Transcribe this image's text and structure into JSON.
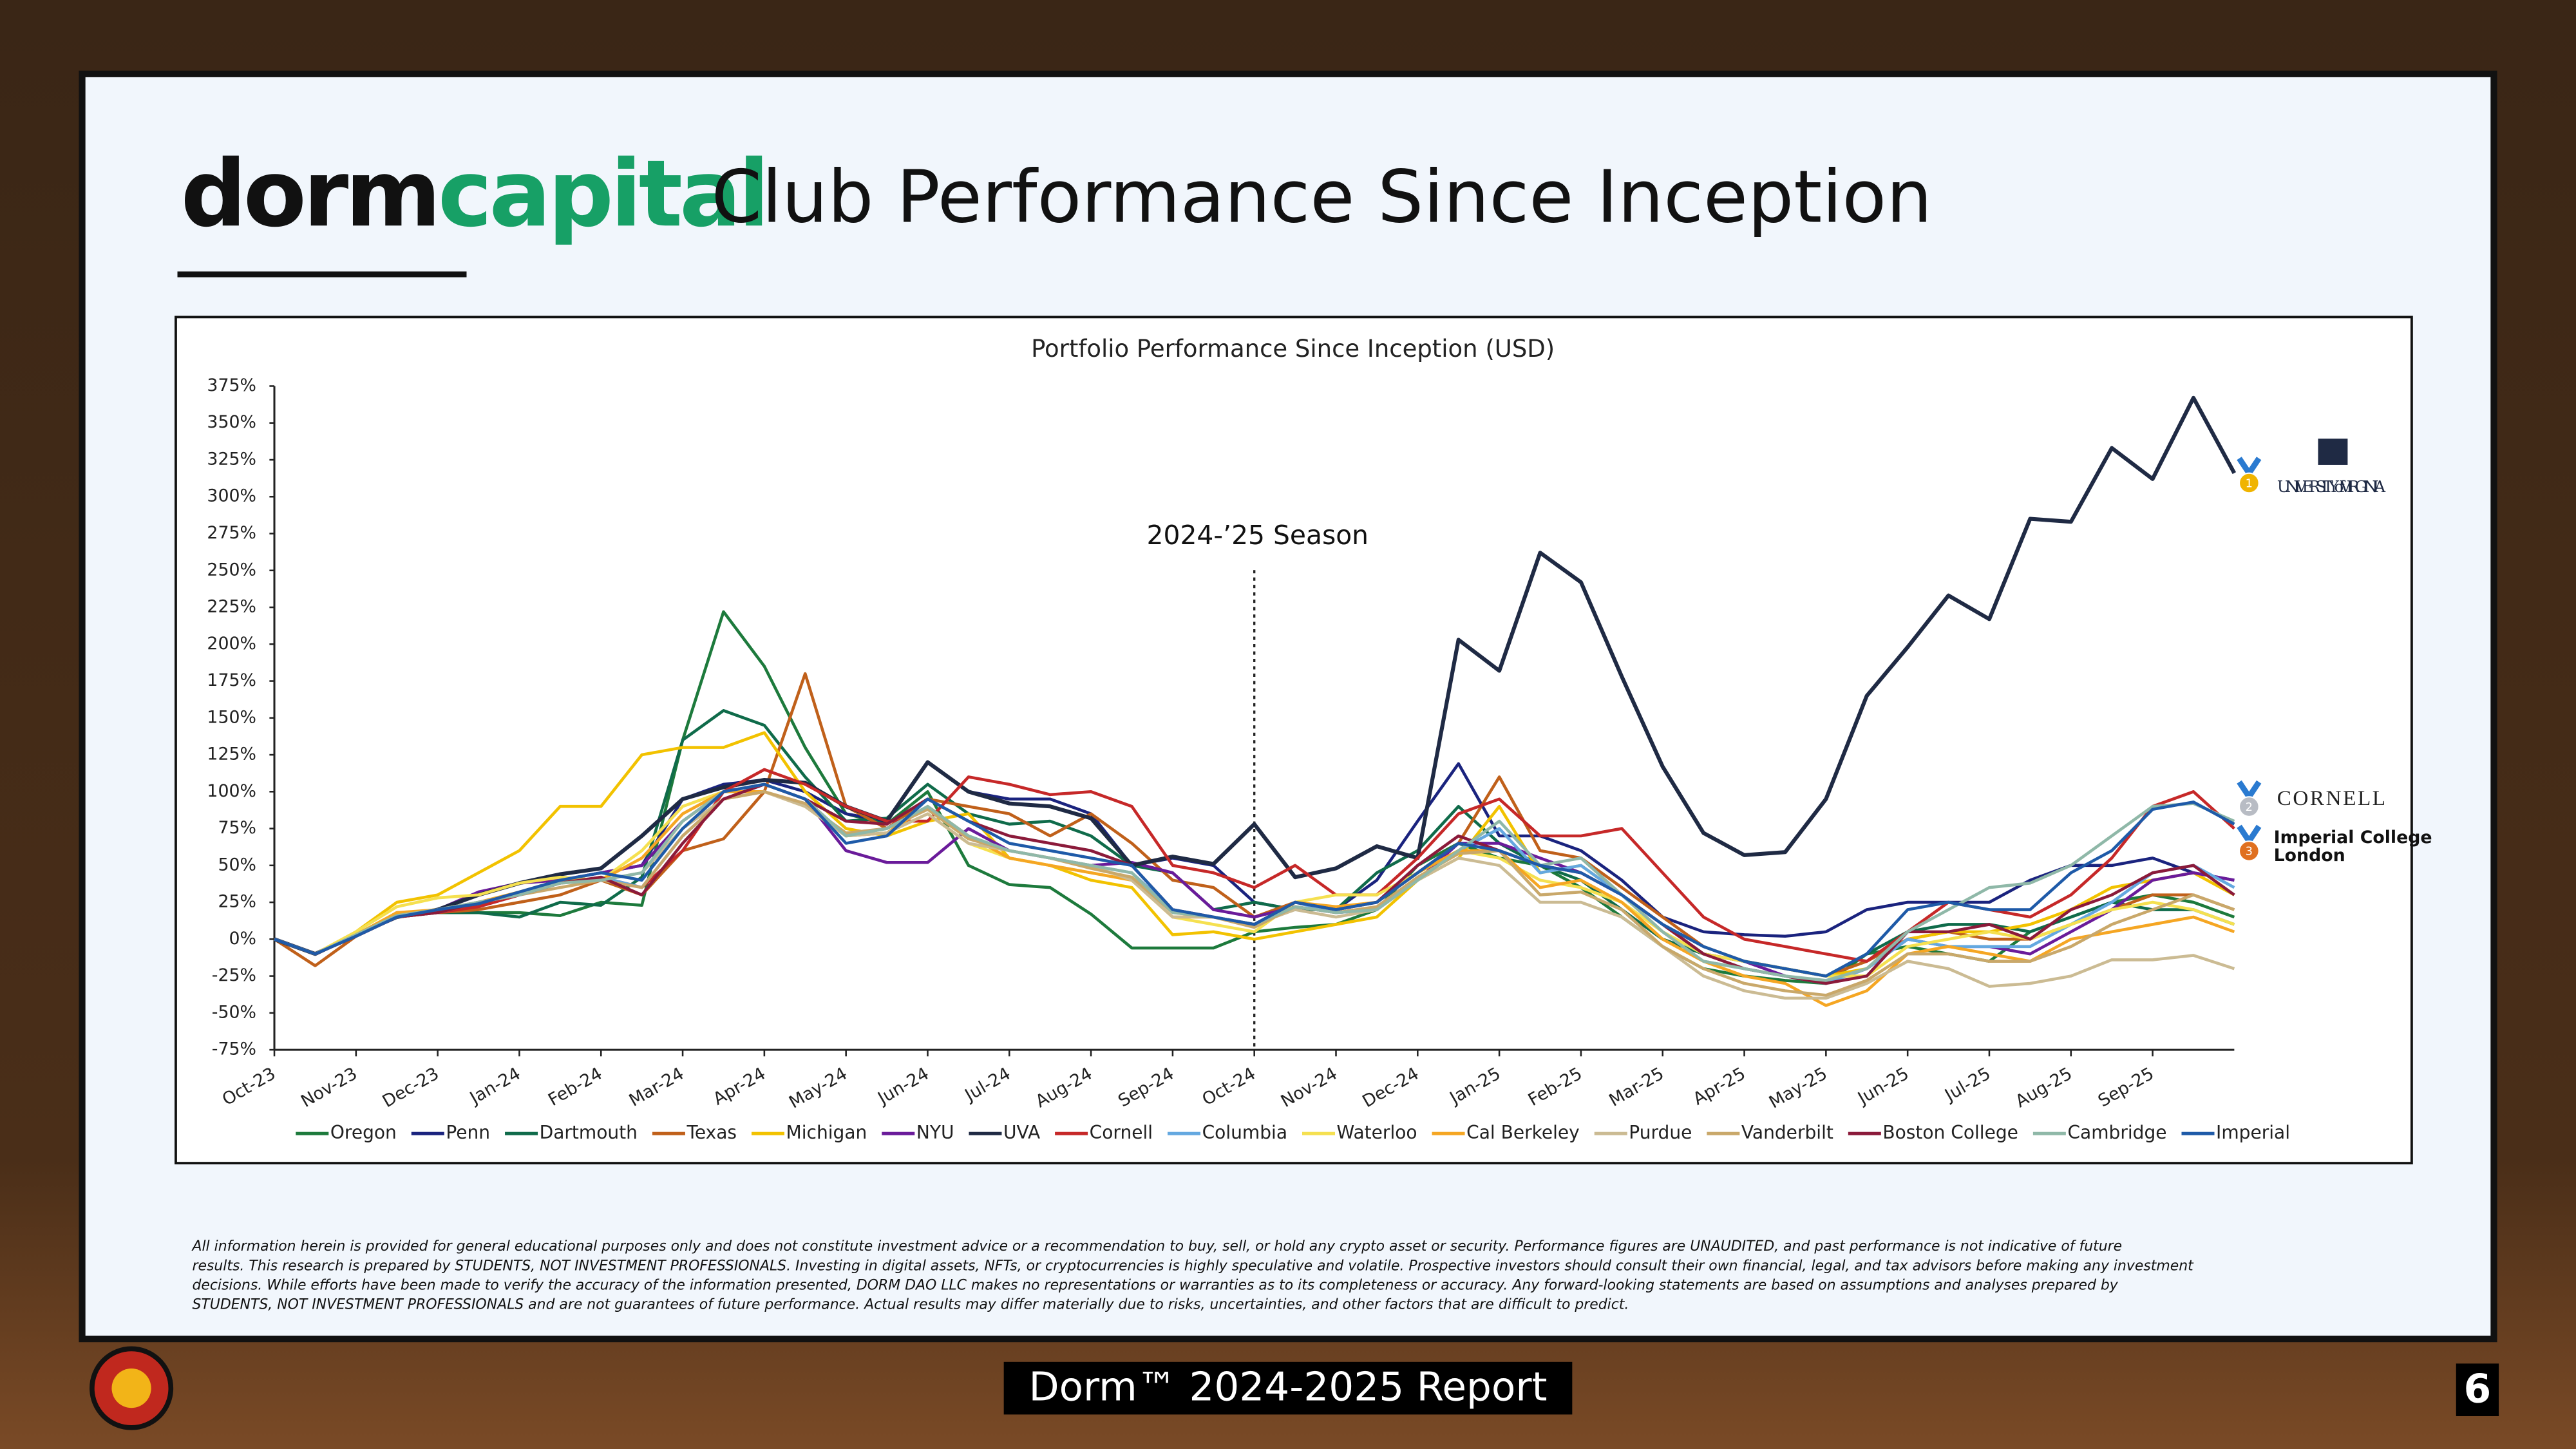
{
  "header": {
    "logo_dark": "dorm",
    "logo_green": "capital",
    "title": "Club Performance Since Inception"
  },
  "chart_data": {
    "type": "line",
    "title": "Portfolio Performance Since Inception (USD)",
    "categories": [
      "Oct-23",
      null,
      "Nov-23",
      null,
      "Dec-23",
      null,
      "Jan-24",
      null,
      "Feb-24",
      null,
      "Mar-24",
      null,
      "Apr-24",
      null,
      "May-24",
      null,
      "Jun-24",
      null,
      "Jul-24",
      null,
      "Aug-24",
      null,
      "Sep-24",
      null,
      "Oct-24",
      null,
      "Nov-24",
      null,
      "Dec-24",
      null,
      "Jan-25",
      null,
      "Feb-25",
      null,
      "Mar-25",
      null,
      "Apr-25",
      null,
      "May-25",
      null,
      "Jun-25",
      null,
      "Jul-25",
      null,
      "Aug-25",
      null,
      "Sep-25",
      null,
      null
    ],
    "ylim": [
      -75,
      375
    ],
    "yticks": [
      {
        "value": -75,
        "label": "-75%"
      },
      {
        "value": -50,
        "label": "-50%"
      },
      {
        "value": -25,
        "label": "-25%"
      },
      {
        "value": 0,
        "label": "0%"
      },
      {
        "value": 25,
        "label": "25%"
      },
      {
        "value": 50,
        "label": "50%"
      },
      {
        "value": 75,
        "label": "75%"
      },
      {
        "value": 100,
        "label": "100%"
      },
      {
        "value": 125,
        "label": "125%"
      },
      {
        "value": 150,
        "label": "150%"
      },
      {
        "value": 175,
        "label": "175%"
      },
      {
        "value": 200,
        "label": "200%"
      },
      {
        "value": 225,
        "label": "225%"
      },
      {
        "value": 250,
        "label": "250%"
      },
      {
        "value": 275,
        "label": "275%"
      },
      {
        "value": 300,
        "label": "300%"
      },
      {
        "value": 325,
        "label": "325%"
      },
      {
        "value": 350,
        "label": "350%"
      },
      {
        "value": 375,
        "label": "375%"
      }
    ],
    "grid": false,
    "legend": "bottom",
    "annotation": {
      "text": "2024-’25 Season",
      "x": "Oct-24"
    },
    "series": [
      {
        "name": "Oregon",
        "color": "#1d7a3c",
        "values": [
          0,
          -10,
          2,
          15,
          18,
          18,
          18,
          16,
          25,
          23,
          135,
          222,
          185,
          130,
          85,
          78,
          100,
          50,
          37,
          35,
          17,
          -6,
          -6,
          -6,
          5,
          8,
          10,
          20,
          50,
          65,
          55,
          50,
          35,
          15,
          -5,
          -20,
          -25,
          -28,
          -30,
          -10,
          -5,
          -10,
          -15,
          5,
          15,
          25,
          30,
          25,
          15
        ]
      },
      {
        "name": "Penn",
        "color": "#1a237e",
        "values": [
          0,
          -10,
          2,
          15,
          20,
          22,
          30,
          40,
          45,
          50,
          95,
          105,
          108,
          100,
          85,
          80,
          120,
          100,
          95,
          95,
          85,
          50,
          55,
          50,
          25,
          20,
          20,
          40,
          80,
          119,
          70,
          70,
          60,
          40,
          15,
          5,
          3,
          2,
          5,
          20,
          25,
          25,
          25,
          40,
          50,
          50,
          55,
          45,
          40
        ]
      },
      {
        "name": "Dartmouth",
        "color": "#0f6b4a",
        "values": [
          0,
          -10,
          2,
          18,
          18,
          18,
          15,
          25,
          23,
          42,
          135,
          155,
          145,
          110,
          80,
          82,
          105,
          85,
          78,
          80,
          70,
          50,
          45,
          20,
          25,
          20,
          20,
          45,
          60,
          90,
          65,
          50,
          40,
          20,
          0,
          -10,
          -15,
          -20,
          -25,
          -10,
          5,
          10,
          10,
          5,
          15,
          25,
          20,
          20,
          10
        ]
      },
      {
        "name": "Texas",
        "color": "#c0601a",
        "values": [
          0,
          -18,
          2,
          18,
          18,
          20,
          25,
          30,
          40,
          30,
          60,
          68,
          100,
          180,
          90,
          75,
          95,
          90,
          85,
          70,
          85,
          65,
          40,
          35,
          15,
          25,
          20,
          25,
          45,
          65,
          110,
          60,
          55,
          35,
          15,
          -5,
          -15,
          -20,
          -25,
          -15,
          0,
          5,
          0,
          0,
          10,
          20,
          30,
          30,
          20
        ]
      },
      {
        "name": "Michigan",
        "color": "#f2c200",
        "values": [
          0,
          -10,
          5,
          25,
          30,
          45,
          60,
          90,
          90,
          125,
          130,
          130,
          140,
          100,
          75,
          70,
          80,
          85,
          55,
          50,
          40,
          35,
          3,
          5,
          0,
          5,
          10,
          15,
          40,
          55,
          90,
          45,
          50,
          30,
          10,
          -10,
          -15,
          -20,
          -25,
          -20,
          0,
          5,
          5,
          10,
          20,
          35,
          40,
          45,
          30
        ]
      },
      {
        "name": "NYU",
        "color": "#6a1b9a",
        "values": [
          0,
          -10,
          3,
          15,
          20,
          32,
          38,
          40,
          45,
          50,
          80,
          100,
          105,
          95,
          60,
          52,
          52,
          75,
          60,
          55,
          50,
          52,
          45,
          20,
          15,
          22,
          18,
          20,
          40,
          65,
          65,
          55,
          45,
          30,
          10,
          -10,
          -15,
          -25,
          -30,
          -20,
          0,
          -5,
          -5,
          -10,
          5,
          20,
          40,
          45,
          40
        ]
      },
      {
        "name": "UVA",
        "color": "#1f2a44",
        "values": [
          0,
          -10,
          3,
          15,
          20,
          30,
          38,
          44,
          48,
          70,
          95,
          103,
          108,
          106,
          90,
          80,
          120,
          100,
          92,
          90,
          82,
          50,
          56,
          51,
          78,
          42,
          48,
          63,
          55,
          203,
          182,
          262,
          242,
          178,
          117,
          72,
          57,
          59,
          95,
          165,
          198,
          233,
          217,
          285,
          283,
          333,
          312,
          367,
          316
        ]
      },
      {
        "name": "Cornell",
        "color": "#c62828",
        "values": [
          0,
          -10,
          2,
          15,
          18,
          22,
          30,
          38,
          42,
          35,
          60,
          100,
          115,
          105,
          90,
          80,
          80,
          110,
          105,
          98,
          100,
          90,
          50,
          45,
          35,
          50,
          30,
          30,
          55,
          85,
          95,
          70,
          70,
          75,
          45,
          15,
          0,
          -5,
          -10,
          -15,
          5,
          25,
          20,
          15,
          30,
          55,
          90,
          100,
          75
        ]
      },
      {
        "name": "Columbia",
        "color": "#64a8e0",
        "values": [
          0,
          -10,
          3,
          15,
          20,
          25,
          30,
          38,
          42,
          35,
          70,
          95,
          105,
          95,
          70,
          75,
          90,
          70,
          60,
          55,
          50,
          45,
          20,
          15,
          10,
          25,
          18,
          20,
          40,
          60,
          75,
          45,
          50,
          30,
          5,
          -15,
          -20,
          -25,
          -30,
          -20,
          0,
          -5,
          -5,
          -5,
          10,
          25,
          45,
          50,
          35
        ]
      },
      {
        "name": "Waterloo",
        "color": "#f5e050",
        "values": [
          0,
          -10,
          5,
          22,
          28,
          30,
          38,
          42,
          40,
          60,
          90,
          100,
          105,
          95,
          70,
          72,
          85,
          65,
          55,
          50,
          45,
          40,
          15,
          10,
          5,
          25,
          30,
          30,
          45,
          60,
          55,
          40,
          35,
          25,
          5,
          -10,
          -15,
          -20,
          -25,
          -25,
          -5,
          0,
          5,
          0,
          10,
          20,
          25,
          20,
          10
        ]
      },
      {
        "name": "Cal Berkeley",
        "color": "#f5a623",
        "values": [
          0,
          -10,
          3,
          18,
          20,
          25,
          32,
          40,
          40,
          55,
          85,
          100,
          100,
          90,
          70,
          72,
          90,
          70,
          55,
          50,
          45,
          40,
          15,
          15,
          10,
          25,
          22,
          25,
          45,
          60,
          60,
          35,
          40,
          25,
          0,
          -15,
          -25,
          -30,
          -45,
          -35,
          -10,
          -5,
          -10,
          -15,
          0,
          5,
          10,
          15,
          5
        ]
      },
      {
        "name": "Purdue",
        "color": "#cbbb93",
        "values": [
          0,
          -10,
          3,
          15,
          20,
          25,
          30,
          38,
          40,
          45,
          75,
          95,
          100,
          90,
          70,
          72,
          85,
          65,
          60,
          55,
          50,
          40,
          15,
          15,
          10,
          20,
          15,
          20,
          40,
          55,
          50,
          25,
          25,
          15,
          -5,
          -25,
          -35,
          -40,
          -40,
          -30,
          -15,
          -20,
          -32,
          -30,
          -25,
          -14,
          -14,
          -11,
          -20
        ]
      },
      {
        "name": "Vanderbilt",
        "color": "#c9a86a",
        "values": [
          0,
          -10,
          3,
          16,
          18,
          25,
          30,
          35,
          40,
          35,
          70,
          95,
          100,
          92,
          72,
          75,
          88,
          68,
          60,
          55,
          48,
          42,
          18,
          15,
          8,
          22,
          18,
          22,
          42,
          58,
          60,
          30,
          32,
          20,
          -5,
          -20,
          -30,
          -35,
          -38,
          -28,
          -10,
          -10,
          -15,
          -15,
          -5,
          10,
          20,
          30,
          20
        ]
      },
      {
        "name": "Boston College",
        "color": "#8b1a3a",
        "values": [
          0,
          -10,
          2,
          15,
          18,
          25,
          30,
          38,
          42,
          30,
          65,
          95,
          105,
          95,
          80,
          78,
          95,
          80,
          70,
          65,
          60,
          50,
          20,
          15,
          10,
          25,
          20,
          25,
          50,
          70,
          60,
          50,
          45,
          30,
          10,
          -10,
          -20,
          -25,
          -30,
          -25,
          5,
          5,
          10,
          0,
          20,
          30,
          45,
          50,
          30
        ]
      },
      {
        "name": "Cambridge",
        "color": "#8fb8a8",
        "values": [
          0,
          -10,
          3,
          16,
          20,
          25,
          30,
          38,
          40,
          45,
          80,
          100,
          105,
          95,
          70,
          75,
          90,
          70,
          60,
          55,
          50,
          45,
          18,
          15,
          10,
          22,
          18,
          20,
          40,
          60,
          80,
          50,
          55,
          30,
          5,
          -15,
          -20,
          -25,
          -28,
          -20,
          5,
          20,
          35,
          38,
          50,
          70,
          90,
          92,
          80
        ]
      },
      {
        "name": "Imperial",
        "color": "#1e5aa8",
        "values": [
          0,
          -10,
          2,
          15,
          20,
          24,
          32,
          40,
          45,
          40,
          75,
          100,
          105,
          95,
          65,
          70,
          95,
          80,
          65,
          60,
          55,
          50,
          20,
          15,
          10,
          25,
          20,
          25,
          45,
          65,
          60,
          50,
          45,
          30,
          10,
          -5,
          -15,
          -20,
          -25,
          -10,
          20,
          25,
          20,
          20,
          45,
          60,
          88,
          93,
          78
        ]
      }
    ]
  },
  "rankings": [
    {
      "rank": 1,
      "label": "UNIVERSITY of VIRGINIA",
      "color": "#f0b400"
    },
    {
      "rank": 2,
      "label": "CORNELL",
      "color": "#b8bcc4"
    },
    {
      "rank": 3,
      "label": "Imperial College London",
      "color": "#e07020"
    }
  ],
  "disclaimer": [
    "All information herein is provided for general educational purposes only and does not constitute investment advice or a recommendation to buy, sell, or hold any crypto asset or security. Performance figures are UNAUDITED, and past performance is not indicative of future",
    "results. This research is prepared by STUDENTS, NOT INVESTMENT PROFESSIONALS. Investing in digital assets, NFTs, or cryptocurrencies is highly speculative and volatile. Prospective investors should consult their own financial, legal, and tax advisors before making any investment",
    "decisions. While efforts have been made to verify the accuracy of the information presented, DORM DAO LLC makes no representations or warranties as to its completeness or accuracy. Any forward-looking statements are based on assumptions and analyses prepared by",
    "STUDENTS, NOT INVESTMENT PROFESSIONALS and are not guarantees of future performance. Actual results may differ materially due to risks, uncertainties, and other factors that are difficult to predict."
  ],
  "footer": {
    "report": "Dorm™ 2024-2025 Report",
    "page": "6"
  }
}
